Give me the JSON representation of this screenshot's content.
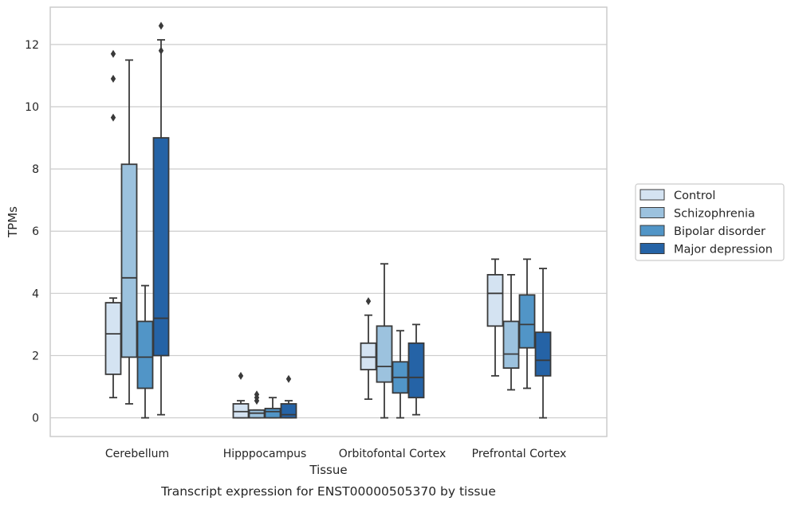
{
  "chart_data": {
    "type": "box",
    "title": "",
    "caption": "Transcript expression for ENST00000505370 by tissue",
    "xlabel": "Tissue",
    "ylabel": "TPMs",
    "ylim": [
      -0.6,
      13.2
    ],
    "yticks": [
      0,
      2,
      4,
      6,
      8,
      10,
      12
    ],
    "grid": "horizontal",
    "legend_position": "right",
    "categories": [
      "Cerebellum",
      "Hipppocampus",
      "Orbitofontal Cortex",
      "Prefrontal Cortex"
    ],
    "series": [
      {
        "name": "Control",
        "color": "#d4e3f2",
        "boxes": [
          {
            "min": 0.65,
            "q1": 1.4,
            "median": 2.7,
            "q3": 3.7,
            "max": 3.85,
            "outliers": []
          },
          {
            "min": 0.0,
            "q1": 0.0,
            "median": 0.2,
            "q3": 0.45,
            "max": 0.55,
            "outliers": [
              1.35
            ]
          },
          {
            "min": 0.6,
            "q1": 1.55,
            "median": 1.95,
            "q3": 2.4,
            "max": 3.3,
            "outliers": [
              3.75
            ]
          },
          {
            "min": 1.35,
            "q1": 2.95,
            "median": 4.0,
            "q3": 4.6,
            "max": 5.1,
            "outliers": []
          }
        ]
      },
      {
        "name": "Schizophrenia",
        "color": "#9cc2de",
        "boxes": [
          {
            "min": 0.45,
            "q1": 1.95,
            "median": 4.5,
            "q3": 8.15,
            "max": 11.5,
            "outliers": []
          },
          {
            "min": 0.0,
            "q1": 0.0,
            "median": 0.15,
            "q3": 0.25,
            "max": 0.25,
            "outliers": [
              0.55,
              0.65,
              0.75
            ]
          },
          {
            "min": 0.0,
            "q1": 1.15,
            "median": 1.65,
            "q3": 2.95,
            "max": 4.95,
            "outliers": []
          },
          {
            "min": 0.9,
            "q1": 1.6,
            "median": 2.05,
            "q3": 3.1,
            "max": 4.6,
            "outliers": []
          }
        ]
      },
      {
        "name": "Bipolar disorder",
        "color": "#5195c7",
        "boxes": [
          {
            "min": 0.0,
            "q1": 0.95,
            "median": 1.95,
            "q3": 3.1,
            "max": 4.25,
            "outliers": []
          },
          {
            "min": 0.0,
            "q1": 0.0,
            "median": 0.2,
            "q3": 0.3,
            "max": 0.65,
            "outliers": []
          },
          {
            "min": 0.0,
            "q1": 0.8,
            "median": 1.3,
            "q3": 1.8,
            "max": 2.8,
            "outliers": []
          },
          {
            "min": 0.95,
            "q1": 2.25,
            "median": 3.0,
            "q3": 3.95,
            "max": 5.1,
            "outliers": []
          }
        ]
      },
      {
        "name": "Major depression",
        "color": "#2563a6",
        "boxes": [
          {
            "min": 0.1,
            "q1": 2.0,
            "median": 3.2,
            "q3": 9.0,
            "max": 12.15,
            "outliers": [
              11.8,
              12.6
            ]
          },
          {
            "min": 0.0,
            "q1": 0.0,
            "median": 0.1,
            "q3": 0.45,
            "max": 0.55,
            "outliers": [
              1.25
            ]
          },
          {
            "min": 0.1,
            "q1": 0.65,
            "median": 1.3,
            "q3": 2.4,
            "max": 3.0,
            "outliers": []
          },
          {
            "min": 0.0,
            "q1": 1.35,
            "median": 1.85,
            "q3": 2.75,
            "max": 4.8,
            "outliers": []
          }
        ]
      }
    ],
    "extra_outliers_control_cerebellum": [
      9.65,
      10.9,
      11.7
    ]
  }
}
